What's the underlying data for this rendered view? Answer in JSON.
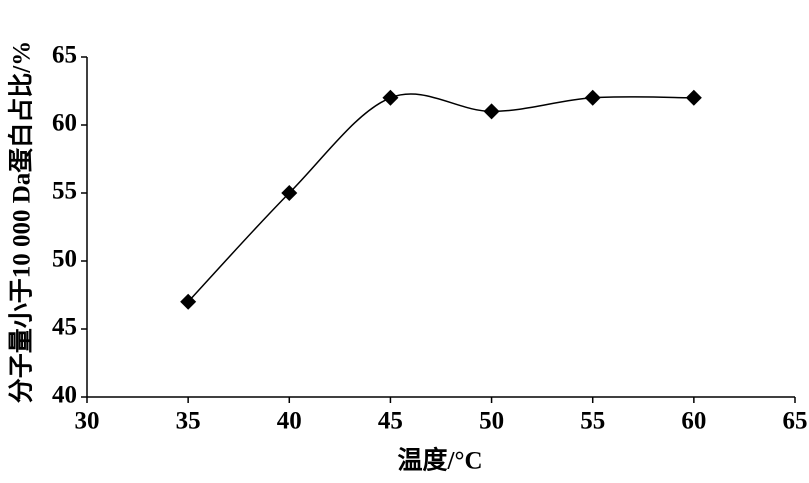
{
  "chart_data": {
    "type": "line",
    "smooth": true,
    "marker": "diamond",
    "color": "#000000",
    "x": [
      35,
      40,
      45,
      50,
      55,
      60
    ],
    "values": [
      47,
      55,
      62,
      61,
      62,
      62
    ],
    "xlim": [
      30,
      65
    ],
    "xticks": [
      30,
      35,
      40,
      45,
      50,
      55,
      60,
      65
    ],
    "ylim": [
      40,
      65
    ],
    "yticks": [
      40,
      45,
      50,
      55,
      60,
      65
    ],
    "xlabel": "温度/°C",
    "ylabel": "分子量小于10 000 Da蛋白占比/%"
  }
}
